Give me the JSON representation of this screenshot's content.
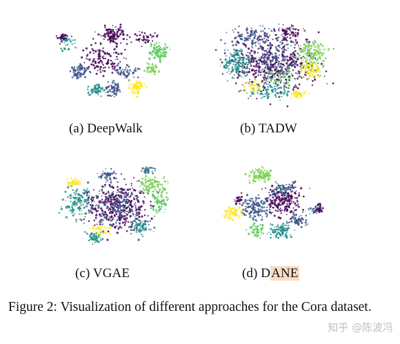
{
  "figure": {
    "panels": [
      {
        "id": "a",
        "label": "(a) DeepWalk",
        "prefix": "(a) DeepWalk",
        "highlight": ""
      },
      {
        "id": "b",
        "label": "(b) TADW",
        "prefix": "(b) TADW",
        "highlight": ""
      },
      {
        "id": "c",
        "label": "(c) VGAE",
        "prefix": "(c) VGAE",
        "highlight": ""
      },
      {
        "id": "d",
        "label": "(d) DANE",
        "prefix": "(d) D",
        "highlight": "ANE"
      }
    ],
    "caption": "Figure 2: Visualization of different approaches for the Cora dataset.",
    "watermark": "知乎 @陈波冯"
  },
  "colors": {
    "palette": [
      "#440154",
      "#3b528b",
      "#21918c",
      "#5ec962",
      "#fde725",
      "#31688e",
      "#7ad151"
    ],
    "highlight": "#f7dcc5"
  },
  "chart_data": [
    {
      "type": "scatter",
      "title": "(a) DeepWalk",
      "xlabel": "",
      "ylabel": "",
      "grid": false
    },
    {
      "type": "scatter",
      "title": "(b) TADW",
      "xlabel": "",
      "ylabel": "",
      "grid": false
    },
    {
      "type": "scatter",
      "title": "(c) VGAE",
      "xlabel": "",
      "ylabel": "",
      "grid": false
    },
    {
      "type": "scatter",
      "title": "(d) DANE",
      "xlabel": "",
      "ylabel": "",
      "grid": false
    }
  ]
}
